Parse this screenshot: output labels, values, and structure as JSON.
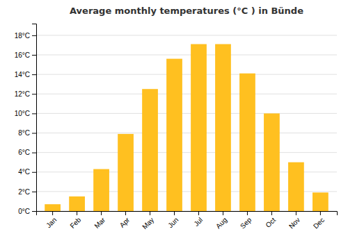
{
  "chart_data": {
    "type": "bar",
    "title": "Average monthly temperatures (°C ) in Bünde",
    "categories": [
      "Jan",
      "Feb",
      "Mar",
      "Apr",
      "May",
      "Jun",
      "Jul",
      "Aug",
      "Sep",
      "Oct",
      "Nov",
      "Dec"
    ],
    "values": [
      0.7,
      1.5,
      4.3,
      7.9,
      12.5,
      15.6,
      17.1,
      17.1,
      14.1,
      10.0,
      5.0,
      1.9
    ],
    "color": "#FFC020",
    "ylim": [
      0,
      19.2
    ],
    "yticks": [
      {
        "value": 0,
        "label": "0°C"
      },
      {
        "value": 2,
        "label": "2°C"
      },
      {
        "value": 4,
        "label": "4°C"
      },
      {
        "value": 6,
        "label": "6°C"
      },
      {
        "value": 8,
        "label": "8°C"
      },
      {
        "value": 10,
        "label": "10°C"
      },
      {
        "value": 12,
        "label": "12°C"
      },
      {
        "value": 14,
        "label": "14°C"
      },
      {
        "value": 16,
        "label": "16°C"
      },
      {
        "value": 18,
        "label": "18°C"
      }
    ],
    "grid": true
  }
}
